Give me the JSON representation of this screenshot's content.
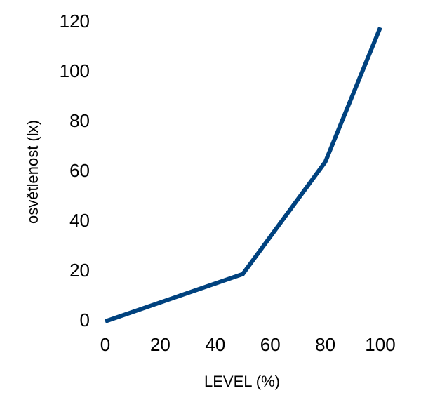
{
  "chart_data": {
    "type": "line",
    "x_label": "LEVEL (%)",
    "y_label": "osvětlenost (lx)",
    "x": [
      0,
      50,
      80,
      100
    ],
    "series": [
      {
        "color": "#00427f",
        "values": [
          0,
          19,
          64,
          118
        ]
      }
    ],
    "xlim": [
      0,
      100
    ],
    "xticks": [
      0,
      20,
      40,
      60,
      80,
      100
    ],
    "ylim": [
      0,
      120
    ],
    "yticks": [
      0,
      20,
      40,
      60,
      80,
      100,
      120
    ],
    "grid": false
  }
}
